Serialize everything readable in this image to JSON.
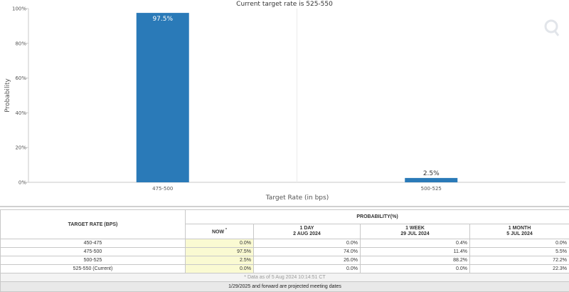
{
  "chart_data": {
    "type": "bar",
    "title": "Current target rate is 525-550",
    "xlabel": "Target Rate (in bps)",
    "ylabel": "Probability",
    "categories": [
      "475-500",
      "500-525"
    ],
    "values": [
      97.5,
      2.5
    ],
    "data_labels": [
      "97.5%",
      "2.5%"
    ],
    "ylim": [
      0,
      100
    ],
    "yticks": [
      0,
      20,
      40,
      60,
      80,
      100
    ],
    "ytick_labels": [
      "0%",
      "20%",
      "40%",
      "60%",
      "80%",
      "100%"
    ],
    "grid": "vertical",
    "bar_color": "#2a7ab8",
    "watermark": "Q"
  },
  "table": {
    "rate_header": "TARGET RATE (BPS)",
    "prob_header": "PROBABILITY(%)",
    "columns": [
      {
        "label": "NOW",
        "marker": "*",
        "date": ""
      },
      {
        "label": "1 DAY",
        "date": "2 AUG 2024"
      },
      {
        "label": "1 WEEK",
        "date": "29 JUL 2024"
      },
      {
        "label": "1 MONTH",
        "date": "5 JUL 2024"
      }
    ],
    "rows": [
      {
        "rate": "450-475",
        "now": "0.0%",
        "day": "0.0%",
        "week": "0.4%",
        "month": "0.0%"
      },
      {
        "rate": "475-500",
        "now": "97.5%",
        "day": "74.0%",
        "week": "11.4%",
        "month": "5.5%"
      },
      {
        "rate": "500-525",
        "now": "2.5%",
        "day": "26.0%",
        "week": "88.2%",
        "month": "72.2%"
      },
      {
        "rate": "525-550 (Current)",
        "now": "0.0%",
        "day": "0.0%",
        "week": "0.0%",
        "month": "22.3%"
      }
    ],
    "footnote": "* Data as of 5 Aug 2024 10:14:51 CT",
    "projection_note": "1/29/2025 and forward are projected meeting dates"
  }
}
